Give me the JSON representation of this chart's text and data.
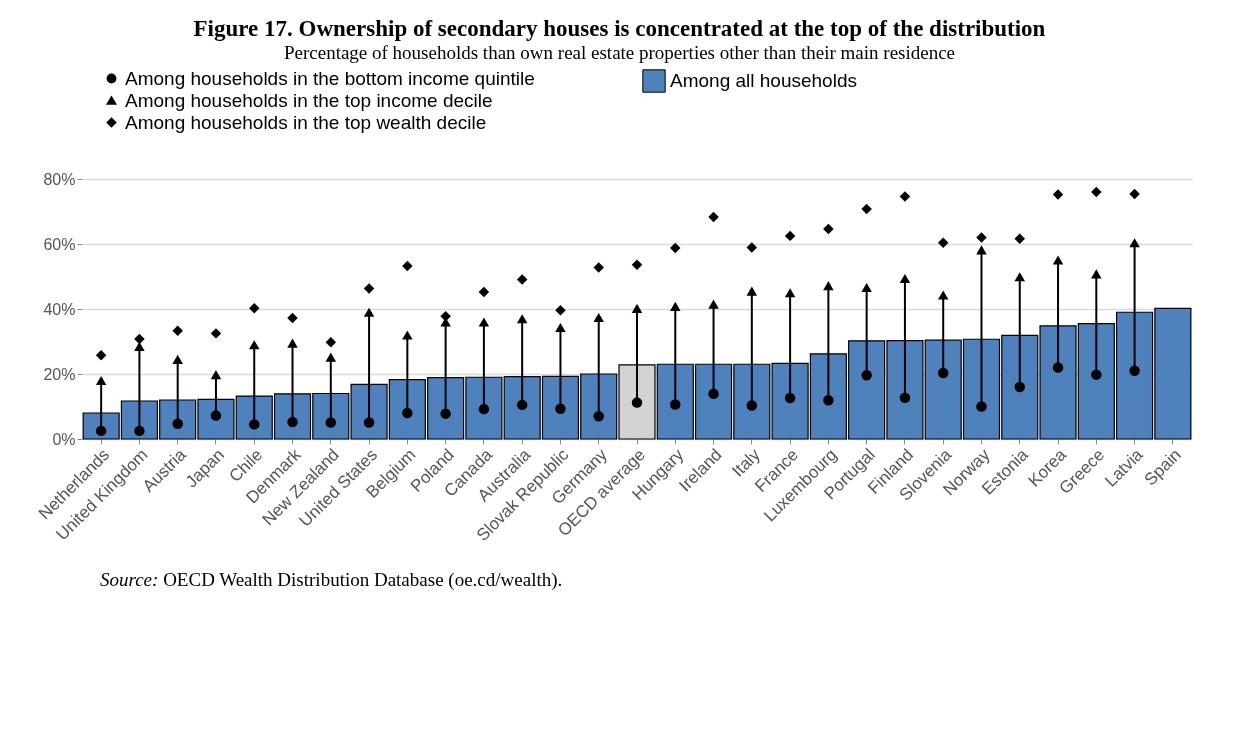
{
  "chart_data": {
    "type": "bar",
    "title": "Figure 17. Ownership of secondary houses is concentrated at the top of the distribution",
    "subtitle": "Percentage of households than own real estate properties other than their main residence",
    "categories": [
      "Netherlands",
      "United Kingdom",
      "Austria",
      "Japan",
      "Chile",
      "Denmark",
      "New Zealand",
      "United States",
      "Belgium",
      "Poland",
      "Canada",
      "Australia",
      "Slovak Republic",
      "Germany",
      "OECD average",
      "Hungary",
      "Ireland",
      "Italy",
      "France",
      "Luxembourg",
      "Portugal",
      "Finland",
      "Slovenia",
      "Norway",
      "Estonia",
      "Korea",
      "Greece",
      "Latvia",
      "Spain"
    ],
    "series": [
      {
        "name": "Among all households",
        "color": "#4f81bd",
        "colors": [
          "#4f81bd",
          "#4f81bd",
          "#4f81bd",
          "#4f81bd",
          "#4f81bd",
          "#4f81bd",
          "#4f81bd",
          "#4f81bd",
          "#4f81bd",
          "#4f81bd",
          "#4f81bd",
          "#4f81bd",
          "#4f81bd",
          "#4f81bd",
          "#d3d3d3",
          "#4f81bd",
          "#4f81bd",
          "#4f81bd",
          "#4f81bd",
          "#4f81bd",
          "#4f81bd",
          "#4f81bd",
          "#4f81bd",
          "#4f81bd",
          "#4f81bd",
          "#4f81bd",
          "#4f81bd",
          "#4f81bd",
          "#4f81bd"
        ],
        "values": [
          8,
          11.7,
          12,
          12.2,
          13.2,
          13.9,
          14,
          16.8,
          18.3,
          18.9,
          19,
          19.2,
          19.3,
          20,
          22.8,
          23,
          23,
          23,
          23.3,
          26.2,
          30.2,
          30.3,
          30.4,
          30.7,
          31.9,
          34.8,
          35.5,
          39,
          40.2
        ]
      },
      {
        "name": "Among households in the bottom income quintile",
        "type": "scatter",
        "marker": "circle",
        "color": "#000000",
        "values": [
          2.5,
          2.5,
          4.7,
          7.2,
          4.5,
          5.2,
          5.1,
          5.1,
          8,
          7.8,
          9.2,
          10.5,
          9.3,
          7,
          11.2,
          10.6,
          13.9,
          10.3,
          12.6,
          11.9,
          19.6,
          12.7,
          20.3,
          10,
          16,
          22,
          19.8,
          21,
          null
        ]
      },
      {
        "name": "Among households in the top income decile",
        "type": "scatter",
        "marker": "triangle",
        "color": "#000000",
        "values": [
          18,
          28.5,
          24.5,
          19.8,
          29,
          29.5,
          25.2,
          39,
          32,
          36,
          36,
          37,
          34.3,
          37.4,
          40.2,
          40.8,
          41.5,
          45.5,
          45,
          47.2,
          46.6,
          49.4,
          44.3,
          58.2,
          49.9,
          55.1,
          50.8,
          60.4,
          null
        ]
      },
      {
        "name": "Among households in the top wealth decile",
        "type": "scatter",
        "marker": "diamond",
        "color": "#000000",
        "values": [
          25.8,
          30.8,
          33.3,
          32.5,
          40.2,
          37.2,
          29.8,
          46.3,
          53.2,
          37.8,
          45.2,
          49.1,
          39.6,
          52.8,
          53.6,
          58.8,
          68.3,
          58.9,
          62.5,
          64.6,
          70.8,
          74.6,
          60.4,
          62,
          61.6,
          75.2,
          76,
          75.4,
          null
        ]
      }
    ],
    "ylim": [
      0,
      80
    ],
    "yticks": [
      {
        "value": 0,
        "label": "0%"
      },
      {
        "value": 20,
        "label": "20%"
      },
      {
        "value": 40,
        "label": "40%"
      },
      {
        "value": 60,
        "label": "60%"
      },
      {
        "value": 80,
        "label": "80%"
      }
    ],
    "grid": "y",
    "legend": "top left",
    "annotations": [
      "Source: OECD Wealth Distribution Database (oe.cd/wealth)."
    ]
  }
}
